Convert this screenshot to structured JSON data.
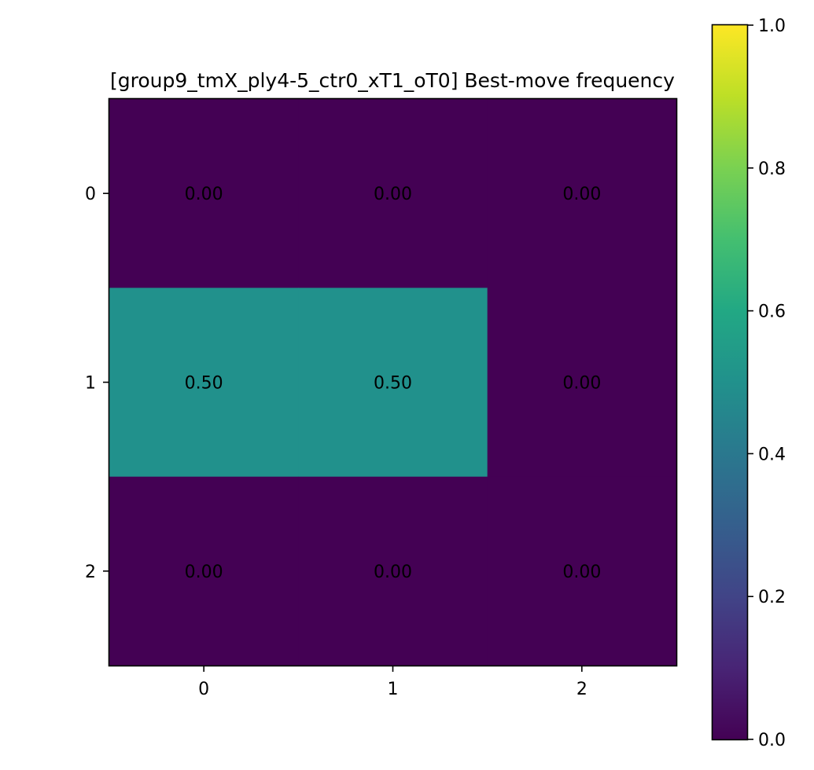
{
  "chart_data": {
    "type": "heatmap",
    "title": "[group9_tmX_ply4-5_ctr0_xT1_oT0] Best-move frequency",
    "xlabel": "",
    "ylabel": "",
    "x_categories": [
      "0",
      "1",
      "2"
    ],
    "y_categories": [
      "0",
      "1",
      "2"
    ],
    "values": [
      [
        0.0,
        0.0,
        0.0
      ],
      [
        0.5,
        0.5,
        0.0
      ],
      [
        0.0,
        0.0,
        0.0
      ]
    ],
    "cell_labels": [
      [
        "0.00",
        "0.00",
        "0.00"
      ],
      [
        "0.50",
        "0.50",
        "0.00"
      ],
      [
        "0.00",
        "0.00",
        "0.00"
      ]
    ],
    "colormap": "viridis",
    "vmin": 0.0,
    "vmax": 1.0,
    "colorbar_ticks": [
      "0.0",
      "0.2",
      "0.4",
      "0.6",
      "0.8",
      "1.0"
    ],
    "colorbar_tick_values": [
      0.0,
      0.2,
      0.4,
      0.6,
      0.8,
      1.0
    ],
    "grid": false
  }
}
